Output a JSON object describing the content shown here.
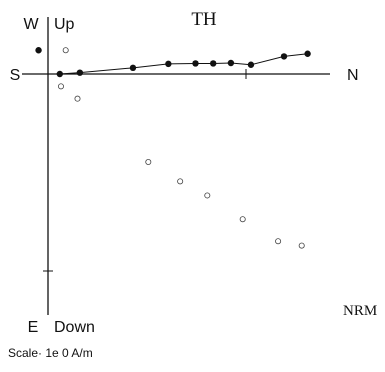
{
  "chart_data": {
    "type": "scatter",
    "title": "TH",
    "axis_labels": {
      "north": "N",
      "south": "S",
      "west": "W",
      "east": "E",
      "up": "Up",
      "down": "Down"
    },
    "annotation": "NRM",
    "scale_text": "Scale· 1e 0 A/m",
    "xlim": [
      -0.2,
      2.9
    ],
    "ylim": [
      -2.55,
      0.45
    ],
    "grid": false,
    "series": [
      {
        "projection": "horizontal",
        "marker": "filled-circle",
        "connected": true,
        "x": [
          0.1,
          0.27,
          0.72,
          1.02,
          1.25,
          1.4,
          1.55,
          1.72,
          2.0,
          2.2
        ],
        "y": [
          0.0,
          0.015,
          0.07,
          0.115,
          0.12,
          0.12,
          0.125,
          0.105,
          0.2,
          0.23
        ]
      },
      {
        "projection": "vertical",
        "marker": "open-circle",
        "connected": false,
        "x": [
          0.15,
          0.11,
          0.25,
          0.85,
          1.12,
          1.35,
          1.65,
          1.95,
          2.15
        ],
        "y": [
          0.27,
          -0.14,
          -0.28,
          -1.0,
          -1.22,
          -1.38,
          -1.65,
          -1.9,
          -1.95
        ]
      },
      {
        "projection": "single-point",
        "marker": "filled-circle",
        "connected": false,
        "x": [
          -0.08
        ],
        "y": [
          0.27
        ]
      }
    ]
  }
}
